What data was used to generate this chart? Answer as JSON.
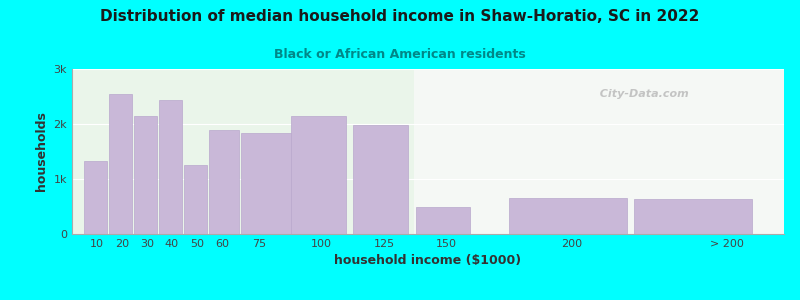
{
  "title": "Distribution of median household income in Shaw-Horatio, SC in 2022",
  "subtitle": "Black or African American residents",
  "xlabel": "household income ($1000)",
  "ylabel": "households",
  "background_outer": "#00FFFF",
  "background_inner_left": "#eaf5ea",
  "background_inner_right": "#f5f8f5",
  "bar_color": "#c9b8d8",
  "bar_edge_color": "#b8a8cc",
  "values": [
    1320,
    2550,
    2150,
    2430,
    1250,
    1900,
    1830,
    2150,
    1980,
    490,
    660,
    640
  ],
  "left_edges": [
    5,
    15,
    25,
    35,
    45,
    55,
    67.5,
    87.5,
    112.5,
    137.5,
    175,
    225
  ],
  "bar_widths": [
    9,
    9,
    9,
    9,
    9,
    12,
    22,
    22,
    22,
    22,
    47,
    47
  ],
  "xtick_positions": [
    10,
    20,
    30,
    40,
    50,
    60,
    75,
    100,
    125,
    150,
    200,
    262
  ],
  "xtick_labels": [
    "10",
    "20",
    "30",
    "40",
    "50",
    "60",
    "75",
    "100",
    "125",
    "150",
    "200",
    "> 200"
  ],
  "ylim": [
    0,
    3000
  ],
  "xlim": [
    0,
    285
  ],
  "yticks": [
    0,
    1000,
    2000,
    3000
  ],
  "ytick_labels": [
    "0",
    "1k",
    "2k",
    "3k"
  ],
  "split_x": 137,
  "title_fontsize": 11,
  "subtitle_fontsize": 9,
  "axis_label_fontsize": 9,
  "tick_fontsize": 8,
  "watermark": "  City-Data.com"
}
